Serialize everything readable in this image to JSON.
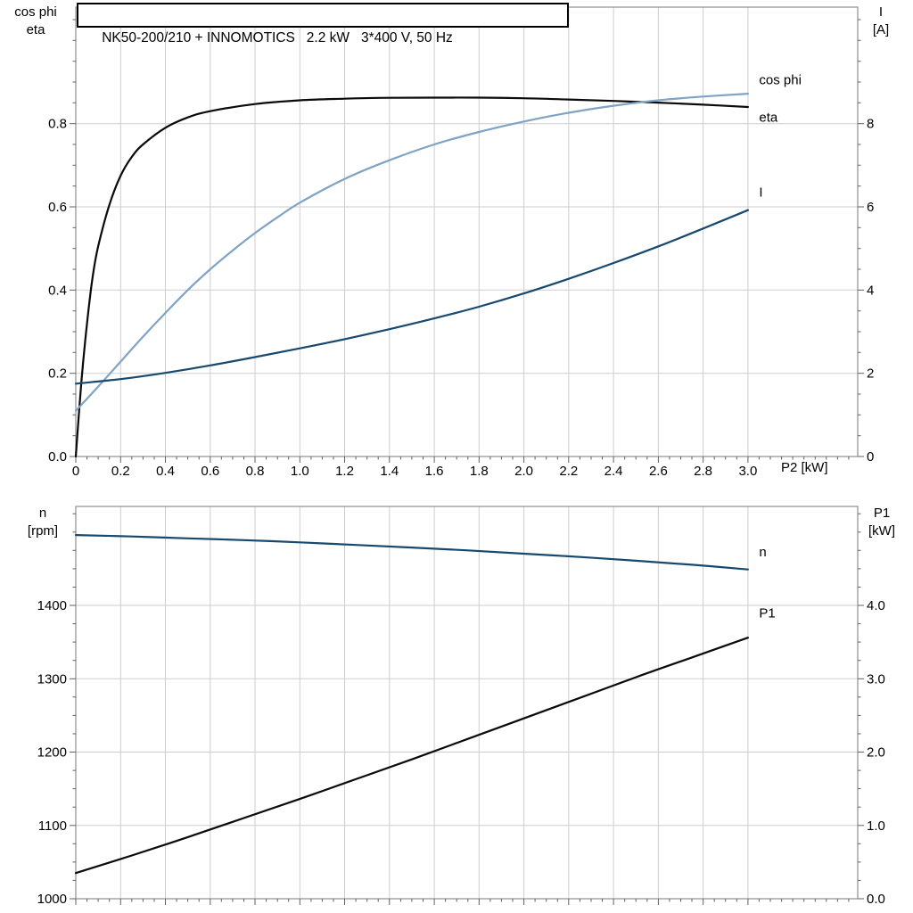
{
  "title_box": "NK50-200/210 + INNOMOTICS   2.2 kW   3*400 V, 50 Hz",
  "colors": {
    "grid": "#cdcdcd",
    "frame": "#909090",
    "tick": "#606060",
    "text": "#000000"
  },
  "chart_data": [
    {
      "type": "line",
      "name": "efficiency-cosphi-current-vs-p2",
      "x_axis": {
        "label": "P2 [kW]",
        "min": 0,
        "max": 3.49,
        "minor_step": 0.05,
        "show_tick_labels": true,
        "major_ticks": [
          0,
          0.2,
          0.4,
          0.6,
          0.8,
          1.0,
          1.2,
          1.4,
          1.6,
          1.8,
          2.0,
          2.2,
          2.4,
          2.6,
          2.8,
          3.0
        ],
        "tick_labels": [
          "0",
          "0.2",
          "0.4",
          "0.6",
          "0.8",
          "1.0",
          "1.2",
          "1.4",
          "1.6",
          "1.8",
          "2.0",
          "2.2",
          "2.4",
          "2.6",
          "2.8",
          "3.0"
        ]
      },
      "left_axis": {
        "label_lines": [
          "cos phi",
          "eta"
        ],
        "min": 0,
        "max": 1.08,
        "minor_step": 0.05,
        "major_ticks": [
          0,
          0.2,
          0.4,
          0.6,
          0.8
        ],
        "tick_labels": [
          "0.0",
          "0.2",
          "0.4",
          "0.6",
          "0.8"
        ]
      },
      "right_axis": {
        "label_lines": [
          "I",
          "[A]"
        ],
        "min": 0,
        "max": 10.8,
        "minor_step": 0.5,
        "major_ticks": [
          0,
          2,
          4,
          6,
          8
        ],
        "tick_labels": [
          "0",
          "2",
          "4",
          "6",
          "8"
        ]
      },
      "series": [
        {
          "name": "eta",
          "label": "eta",
          "axis": "left",
          "color": "#0a0a0a",
          "label_anchor": [
            3.05,
            0.815
          ],
          "points": [
            [
              0,
              0
            ],
            [
              0.025,
              0.18
            ],
            [
              0.05,
              0.32
            ],
            [
              0.075,
              0.43
            ],
            [
              0.1,
              0.505
            ],
            [
              0.15,
              0.605
            ],
            [
              0.2,
              0.675
            ],
            [
              0.25,
              0.72
            ],
            [
              0.3,
              0.75
            ],
            [
              0.4,
              0.79
            ],
            [
              0.5,
              0.815
            ],
            [
              0.6,
              0.83
            ],
            [
              0.8,
              0.847
            ],
            [
              1.0,
              0.856
            ],
            [
              1.2,
              0.86
            ],
            [
              1.4,
              0.862
            ],
            [
              1.6,
              0.8625
            ],
            [
              1.8,
              0.8625
            ],
            [
              2.0,
              0.861
            ],
            [
              2.2,
              0.858
            ],
            [
              2.4,
              0.8545
            ],
            [
              2.6,
              0.8505
            ],
            [
              2.8,
              0.8455
            ],
            [
              3.0,
              0.84
            ]
          ]
        },
        {
          "name": "cos-phi",
          "label": "cos phi",
          "axis": "left",
          "color": "#7FA3C5",
          "label_anchor": [
            3.05,
            0.905
          ],
          "points": [
            [
              0,
              0.11
            ],
            [
              0.1,
              0.168
            ],
            [
              0.2,
              0.228
            ],
            [
              0.3,
              0.288
            ],
            [
              0.4,
              0.345
            ],
            [
              0.5,
              0.4
            ],
            [
              0.6,
              0.45
            ],
            [
              0.7,
              0.495
            ],
            [
              0.8,
              0.537
            ],
            [
              0.9,
              0.575
            ],
            [
              1.0,
              0.61
            ],
            [
              1.2,
              0.667
            ],
            [
              1.4,
              0.712
            ],
            [
              1.6,
              0.75
            ],
            [
              1.8,
              0.78
            ],
            [
              2.0,
              0.805
            ],
            [
              2.2,
              0.826
            ],
            [
              2.4,
              0.843
            ],
            [
              2.6,
              0.856
            ],
            [
              2.8,
              0.865
            ],
            [
              3.0,
              0.872
            ]
          ]
        },
        {
          "name": "current",
          "label": "I",
          "axis": "right",
          "color": "#17496E",
          "label_anchor": [
            3.05,
            6.35
          ],
          "points": [
            [
              0,
              1.75
            ],
            [
              0.2,
              1.86
            ],
            [
              0.4,
              2.01
            ],
            [
              0.6,
              2.19
            ],
            [
              0.8,
              2.39
            ],
            [
              1.0,
              2.6
            ],
            [
              1.2,
              2.82
            ],
            [
              1.4,
              3.06
            ],
            [
              1.6,
              3.32
            ],
            [
              1.8,
              3.6
            ],
            [
              2.0,
              3.92
            ],
            [
              2.2,
              4.27
            ],
            [
              2.4,
              4.65
            ],
            [
              2.6,
              5.05
            ],
            [
              2.8,
              5.48
            ],
            [
              3.0,
              5.92
            ]
          ]
        }
      ]
    },
    {
      "type": "line",
      "name": "speed-and-p1-vs-p2",
      "x_axis": {
        "label": "",
        "min": 0,
        "max": 3.49,
        "minor_step": 0.05,
        "show_tick_labels": false,
        "major_ticks": [
          0,
          0.2,
          0.4,
          0.6,
          0.8,
          1.0,
          1.2,
          1.4,
          1.6,
          1.8,
          2.0,
          2.2,
          2.4,
          2.6,
          2.8,
          3.0
        ],
        "tick_labels": []
      },
      "left_axis": {
        "label_lines": [
          "n",
          "[rpm]"
        ],
        "min": 1000,
        "max": 1535,
        "minor_step": 25,
        "major_ticks": [
          1000,
          1100,
          1200,
          1300,
          1400
        ],
        "tick_labels": [
          "1000",
          "1100",
          "1200",
          "1300",
          "1400"
        ]
      },
      "right_axis": {
        "label_lines": [
          "P1",
          "[kW]"
        ],
        "min": 0,
        "max": 5.35,
        "minor_step": 0.25,
        "major_ticks": [
          0,
          1,
          2,
          3,
          4
        ],
        "tick_labels": [
          "0.0",
          "1.0",
          "2.0",
          "3.0",
          "4.0"
        ]
      },
      "series": [
        {
          "name": "speed",
          "label": "n",
          "axis": "left",
          "color": "#17496E",
          "label_anchor": [
            3.05,
            1473
          ],
          "points": [
            [
              0,
              1496
            ],
            [
              0.25,
              1494
            ],
            [
              0.5,
              1491.5
            ],
            [
              0.75,
              1489
            ],
            [
              1.0,
              1486
            ],
            [
              1.25,
              1482.5
            ],
            [
              1.5,
              1479
            ],
            [
              1.75,
              1475
            ],
            [
              2.0,
              1470.5
            ],
            [
              2.25,
              1466
            ],
            [
              2.5,
              1461
            ],
            [
              2.75,
              1455.5
            ],
            [
              3.0,
              1449
            ]
          ]
        },
        {
          "name": "input-power",
          "label": "P1",
          "axis": "right",
          "color": "#0a0a0a",
          "label_anchor": [
            3.05,
            3.9
          ],
          "points": [
            [
              0,
              0.35
            ],
            [
              0.25,
              0.59
            ],
            [
              0.5,
              0.84
            ],
            [
              0.75,
              1.1
            ],
            [
              1.0,
              1.36
            ],
            [
              1.25,
              1.63
            ],
            [
              1.5,
              1.9
            ],
            [
              1.75,
              2.18
            ],
            [
              2.0,
              2.46
            ],
            [
              2.25,
              2.74
            ],
            [
              2.5,
              3.02
            ],
            [
              2.75,
              3.29
            ],
            [
              3.0,
              3.56
            ]
          ]
        }
      ]
    }
  ]
}
